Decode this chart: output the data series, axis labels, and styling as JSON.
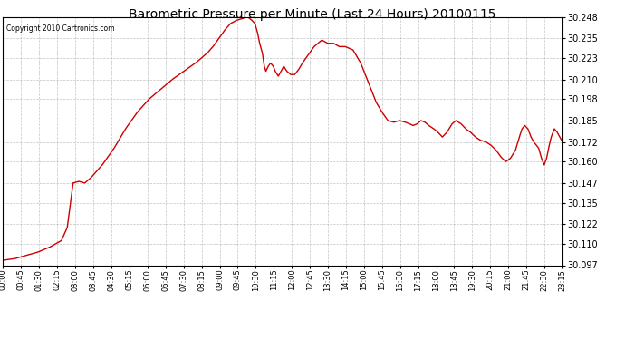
{
  "title": "Barometric Pressure per Minute (Last 24 Hours) 20100115",
  "copyright": "Copyright 2010 Cartronics.com",
  "line_color": "#cc0000",
  "bg_color": "#ffffff",
  "plot_bg_color": "#ffffff",
  "grid_color": "#aaaaaa",
  "ylim": [
    30.097,
    30.248
  ],
  "yticks": [
    30.097,
    30.11,
    30.122,
    30.135,
    30.147,
    30.16,
    30.172,
    30.185,
    30.198,
    30.21,
    30.223,
    30.235,
    30.248
  ],
  "xtick_labels": [
    "00:00",
    "00:45",
    "01:30",
    "02:15",
    "03:00",
    "03:45",
    "04:30",
    "05:15",
    "06:00",
    "06:45",
    "07:30",
    "08:15",
    "09:00",
    "09:45",
    "10:30",
    "11:15",
    "12:00",
    "12:45",
    "13:30",
    "14:15",
    "15:00",
    "15:45",
    "16:30",
    "17:15",
    "18:00",
    "18:45",
    "19:30",
    "20:15",
    "21:00",
    "21:45",
    "22:30",
    "23:15"
  ],
  "control_points": [
    [
      0,
      30.1
    ],
    [
      30,
      30.101
    ],
    [
      60,
      30.103
    ],
    [
      90,
      30.105
    ],
    [
      120,
      30.108
    ],
    [
      150,
      30.112
    ],
    [
      165,
      30.12
    ],
    [
      180,
      30.147
    ],
    [
      195,
      30.148
    ],
    [
      210,
      30.147
    ],
    [
      225,
      30.15
    ],
    [
      255,
      30.158
    ],
    [
      285,
      30.168
    ],
    [
      315,
      30.18
    ],
    [
      345,
      30.19
    ],
    [
      375,
      30.198
    ],
    [
      405,
      30.204
    ],
    [
      435,
      30.21
    ],
    [
      465,
      30.215
    ],
    [
      495,
      30.22
    ],
    [
      525,
      30.226
    ],
    [
      540,
      30.23
    ],
    [
      555,
      30.235
    ],
    [
      570,
      30.24
    ],
    [
      585,
      30.244
    ],
    [
      600,
      30.246
    ],
    [
      615,
      30.247
    ],
    [
      625,
      30.248
    ],
    [
      630,
      30.248
    ],
    [
      640,
      30.246
    ],
    [
      648,
      30.244
    ],
    [
      655,
      30.238
    ],
    [
      660,
      30.232
    ],
    [
      667,
      30.226
    ],
    [
      672,
      30.218
    ],
    [
      676,
      30.215
    ],
    [
      682,
      30.218
    ],
    [
      688,
      30.22
    ],
    [
      695,
      30.218
    ],
    [
      700,
      30.215
    ],
    [
      708,
      30.212
    ],
    [
      715,
      30.215
    ],
    [
      722,
      30.218
    ],
    [
      730,
      30.215
    ],
    [
      740,
      30.213
    ],
    [
      750,
      30.213
    ],
    [
      760,
      30.216
    ],
    [
      770,
      30.22
    ],
    [
      785,
      30.225
    ],
    [
      800,
      30.23
    ],
    [
      820,
      30.234
    ],
    [
      835,
      30.232
    ],
    [
      850,
      30.232
    ],
    [
      865,
      30.23
    ],
    [
      880,
      30.23
    ],
    [
      900,
      30.228
    ],
    [
      920,
      30.22
    ],
    [
      940,
      30.208
    ],
    [
      960,
      30.196
    ],
    [
      975,
      30.19
    ],
    [
      990,
      30.185
    ],
    [
      1005,
      30.184
    ],
    [
      1020,
      30.185
    ],
    [
      1035,
      30.184
    ],
    [
      1045,
      30.183
    ],
    [
      1055,
      30.182
    ],
    [
      1065,
      30.183
    ],
    [
      1075,
      30.185
    ],
    [
      1085,
      30.184
    ],
    [
      1095,
      30.182
    ],
    [
      1108,
      30.18
    ],
    [
      1118,
      30.178
    ],
    [
      1130,
      30.175
    ],
    [
      1142,
      30.178
    ],
    [
      1155,
      30.183
    ],
    [
      1165,
      30.185
    ],
    [
      1178,
      30.183
    ],
    [
      1190,
      30.18
    ],
    [
      1202,
      30.178
    ],
    [
      1215,
      30.175
    ],
    [
      1228,
      30.173
    ],
    [
      1242,
      30.172
    ],
    [
      1255,
      30.17
    ],
    [
      1268,
      30.167
    ],
    [
      1280,
      30.163
    ],
    [
      1293,
      30.16
    ],
    [
      1305,
      30.162
    ],
    [
      1318,
      30.167
    ],
    [
      1328,
      30.175
    ],
    [
      1335,
      30.18
    ],
    [
      1342,
      30.182
    ],
    [
      1350,
      30.18
    ],
    [
      1358,
      30.175
    ],
    [
      1365,
      30.172
    ],
    [
      1372,
      30.17
    ],
    [
      1378,
      30.168
    ],
    [
      1385,
      30.162
    ],
    [
      1392,
      30.158
    ],
    [
      1398,
      30.162
    ],
    [
      1403,
      30.168
    ],
    [
      1410,
      30.175
    ],
    [
      1418,
      30.18
    ],
    [
      1425,
      30.178
    ],
    [
      1432,
      30.175
    ],
    [
      1439,
      30.172
    ]
  ]
}
